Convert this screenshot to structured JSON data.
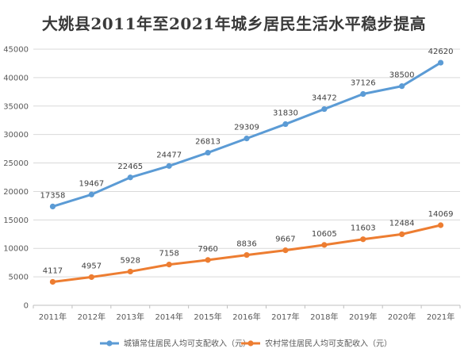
{
  "chart_data": {
    "type": "line",
    "title": "大姚县2011年至2021年城乡居民生活水平稳步提高",
    "categories": [
      "2011年",
      "2012年",
      "2013年",
      "2014年",
      "2015年",
      "2016年",
      "2017年",
      "2018年",
      "2019年",
      "2020年",
      "2021年"
    ],
    "yticks": [
      "0",
      "5000",
      "10000",
      "15000",
      "20000",
      "25000",
      "30000",
      "35000",
      "40000",
      "45000"
    ],
    "ylim": [
      0,
      45000
    ],
    "grid": true,
    "legend_position": "bottom",
    "series": [
      {
        "name": "城镇常住居民人均可支配收入（元）",
        "color": "#5B9BD5",
        "values": [
          17358,
          19467,
          22465,
          24477,
          26813,
          29309,
          31830,
          34472,
          37126,
          38500,
          42620
        ],
        "labels": [
          "17358",
          "19467",
          "22465",
          "24477",
          "26813",
          "29309",
          "31830",
          "34472",
          "37126",
          "38500",
          "42620"
        ]
      },
      {
        "name": "农村常住居民人均可支配收入（元）",
        "color": "#ED7D31",
        "values": [
          4117,
          4957,
          5928,
          7158,
          7960,
          8836,
          9667,
          10605,
          11603,
          12484,
          14069
        ],
        "labels": [
          "4117",
          "4957",
          "5928",
          "7158",
          "7960",
          "8836",
          "9667",
          "10605",
          "11603",
          "12484",
          "14069"
        ]
      }
    ]
  }
}
